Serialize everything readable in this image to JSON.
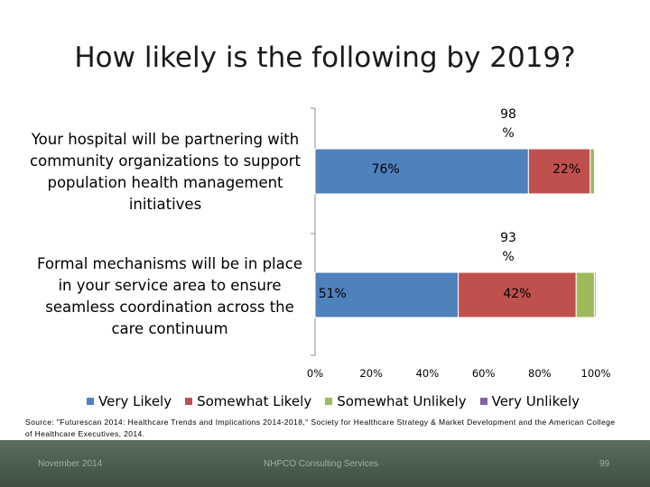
{
  "slide": {
    "title": "How likely is the following by 2019?",
    "source": "Source: \"Futurescan 2014: Healthcare Trends and Implications 2014-2018,\" Society for Healthcare Strategy & Market Development and the American College of Healthcare Executives, 2014.",
    "footer": {
      "date": "November 2014",
      "org": "NHPCO Consulting Services",
      "page": "99"
    }
  },
  "colors": {
    "very_likely": "#4f81bd",
    "somewhat_likely": "#c0504d",
    "somewhat_unlikely": "#9bbb59",
    "very_unlikely": "#8064a2",
    "axis": "#8c8c8c"
  },
  "chart_data": {
    "type": "bar",
    "orientation": "horizontal",
    "stacked": true,
    "title": "How likely is the following by 2019?",
    "categories": [
      "Your hospital will be partnering with community organizations to support population health management initiatives",
      "Formal mechanisms will be in place in your service area to ensure seamless coordination across the care continuum"
    ],
    "series": [
      {
        "name": "Very Likely",
        "values": [
          76,
          51
        ],
        "labels": [
          "76%",
          "51%"
        ]
      },
      {
        "name": "Somewhat Likely",
        "values": [
          22,
          42
        ],
        "labels": [
          "22%",
          "42%"
        ]
      },
      {
        "name": "Somewhat Unlikely",
        "values": [
          1.5,
          6.5
        ],
        "labels": [
          "",
          ""
        ]
      },
      {
        "name": "Very Unlikely",
        "values": [
          0,
          0.5
        ],
        "labels": [
          "",
          ""
        ]
      }
    ],
    "totals": [
      {
        "line1": "98",
        "line2": "%"
      },
      {
        "line1": "93",
        "line2": "%"
      }
    ],
    "xlim": [
      0,
      100
    ],
    "x_ticks": [
      0,
      20,
      40,
      60,
      80,
      100
    ],
    "x_tick_labels": [
      "0%",
      "20%",
      "40%",
      "60%",
      "80%",
      "100%"
    ],
    "legend": [
      "Very Likely",
      "Somewhat Likely",
      "Somewhat Unlikely",
      "Very Unlikely"
    ],
    "legend_position": "bottom"
  }
}
